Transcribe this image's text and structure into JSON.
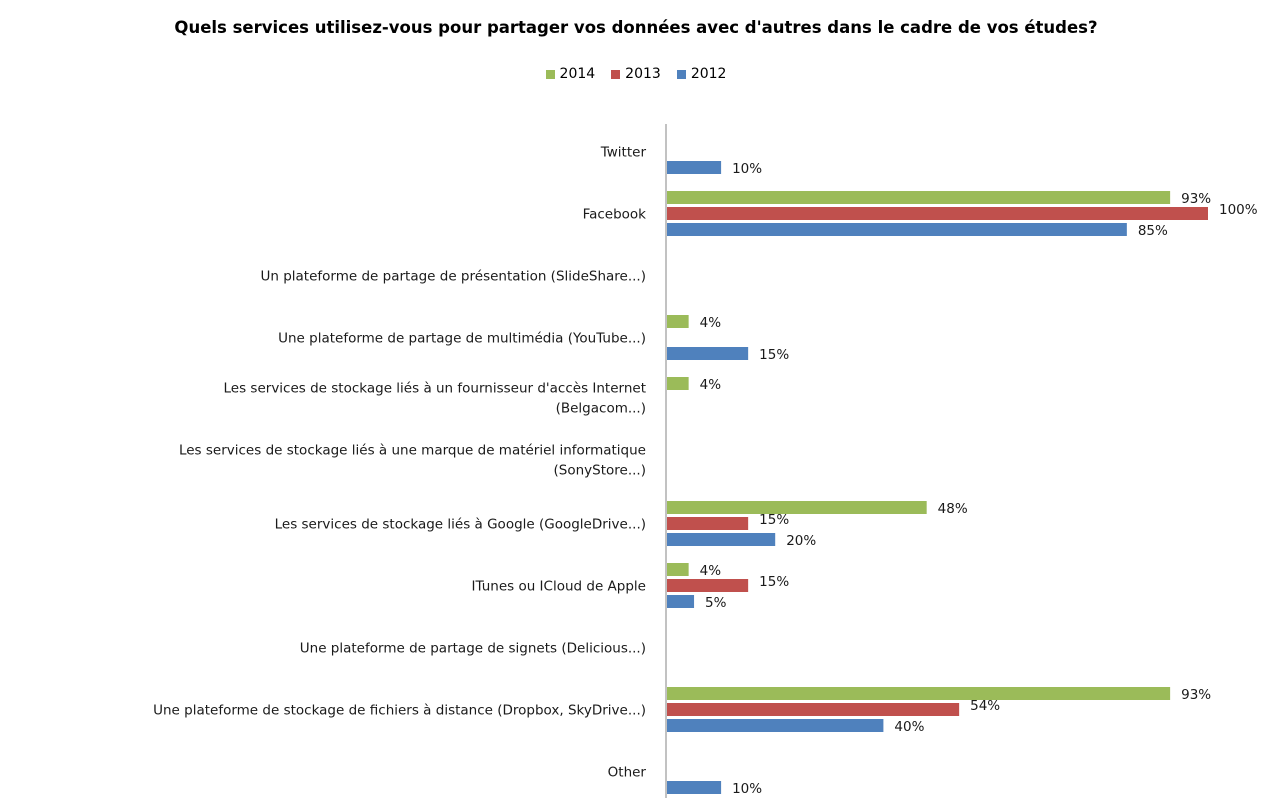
{
  "chart_data": {
    "type": "bar",
    "orientation": "horizontal",
    "title": "Quels services utilisez-vous pour partager vos données avec d'autres dans le cadre de vos études?",
    "legend_position": "top",
    "grid": false,
    "xlim": [
      0,
      100
    ],
    "value_suffix": "%",
    "categories": [
      [
        "Twitter"
      ],
      [
        "Facebook"
      ],
      [
        "Un plateforme de partage de présentation (SlideShare...)"
      ],
      [
        "Une plateforme de partage de multimédia (YouTube...)"
      ],
      [
        "Les services de stockage liés à un fournisseur d'accès Internet",
        "(Belgacom...)"
      ],
      [
        "Les services de stockage liés à une marque de matériel informatique",
        "(SonyStore...)"
      ],
      [
        "Les services de stockage liés à Google (GoogleDrive...)"
      ],
      [
        "ITunes ou ICloud de Apple"
      ],
      [
        "Une plateforme de partage de signets (Delicious...)"
      ],
      [
        "Une plateforme de stockage de fichiers à distance (Dropbox, SkyDrive...)"
      ],
      [
        "Other"
      ]
    ],
    "series": [
      {
        "name": "2014",
        "color": "#9BBB59",
        "values": [
          null,
          93,
          null,
          4,
          4,
          null,
          48,
          4,
          null,
          93,
          null
        ]
      },
      {
        "name": "2013",
        "color": "#C0504D",
        "values": [
          null,
          100,
          null,
          null,
          null,
          null,
          15,
          15,
          null,
          54,
          null
        ]
      },
      {
        "name": "2012",
        "color": "#4F81BD",
        "values": [
          10,
          85,
          null,
          15,
          null,
          null,
          20,
          5,
          null,
          40,
          10
        ]
      }
    ]
  }
}
